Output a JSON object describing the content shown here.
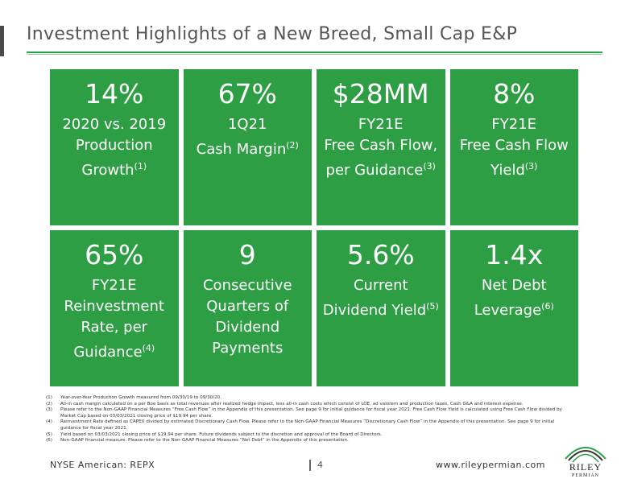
{
  "title": "Investment Highlights of a New Breed, Small Cap E&P",
  "tiles": [
    {
      "value": "14%",
      "l1": "2020 vs. 2019",
      "l2": "Production",
      "l3": "Growth",
      "l3_sup": "(1)",
      "l4": ""
    },
    {
      "value": "67%",
      "l1": "1Q21",
      "l2": "Cash Margin",
      "l2_sup": "(2)",
      "l3": "",
      "l4": ""
    },
    {
      "value": "$28MM",
      "l1": "FY21E",
      "l2": "Free Cash Flow,",
      "l3": "per Guidance",
      "l3_sup": "(3)",
      "l4": ""
    },
    {
      "value": "8%",
      "l1": "FY21E",
      "l2": "Free Cash Flow",
      "l3": "Yield",
      "l3_sup": "(3)",
      "l4": ""
    },
    {
      "value": "65%",
      "l1": "FY21E",
      "l2": "Reinvestment",
      "l3": "Rate, per",
      "l4": "Guidance",
      "l4_sup": "(4)"
    },
    {
      "value": "9",
      "l1": "Consecutive",
      "l2": "Quarters of",
      "l3": "Dividend",
      "l4": "Payments"
    },
    {
      "value": "5.6%",
      "l1": "Current",
      "l2": "Dividend Yield",
      "l2_sup": "(5)",
      "l3": "",
      "l4": ""
    },
    {
      "value": "1.4x",
      "l1": "Net Debt",
      "l2": "Leverage",
      "l2_sup": "(6)",
      "l3": "",
      "l4": ""
    }
  ],
  "footnotes": [
    {
      "num": "(1)",
      "text": "Year-over-Year Production Growth measured from 09/30/19 to 09/30/20."
    },
    {
      "num": "(2)",
      "text": "All-in cash margin calculated on a per Boe basis as total revenues after realized hedge impact, less all-in cash costs which consist of LOE, ad valorem and production taxes, Cash G&A and interest expense."
    },
    {
      "num": "(3)",
      "text": "Please refer to the Non-GAAP Financial Measures “Free Cash Flow” in the Appendix of this presentation. See page 9 for initial guidance for fiscal year 2021. Free Cash Flow Yield is calculated using Free Cash Flow divided by Market Cap based on 03/03/2021 closing price of $19.94 per share."
    },
    {
      "num": "(4)",
      "text": "Reinvestment Rate defined as CAPEX divided by estimated Discretionary Cash Flow. Please refer to the Non-GAAP Financial Measures “Discretionary Cash Flow” in the Appendix of this presentation. See page 9 for initial guidance for fiscal year 2021."
    },
    {
      "num": "(5)",
      "text": "Yield based on 03/03/2021 closing price of $19.94 per share. Future dividends subject to the discretion and approval of the Board of Directors."
    },
    {
      "num": "(6)",
      "text": "Non-GAAP financial measure. Please refer to the Non-GAAP Financial Measures “Net Debt” in the Appendix of this presentation."
    }
  ],
  "footer": {
    "ticker": "NYSE American: REPX",
    "page": "4",
    "website": "www.rileypermian.com"
  },
  "logo": {
    "line1": "RILEY",
    "line2": "PERMIAN"
  },
  "colors": {
    "tile_green": "#2e9e44",
    "rule_green": "#27a14a",
    "title_gray": "#555555"
  }
}
